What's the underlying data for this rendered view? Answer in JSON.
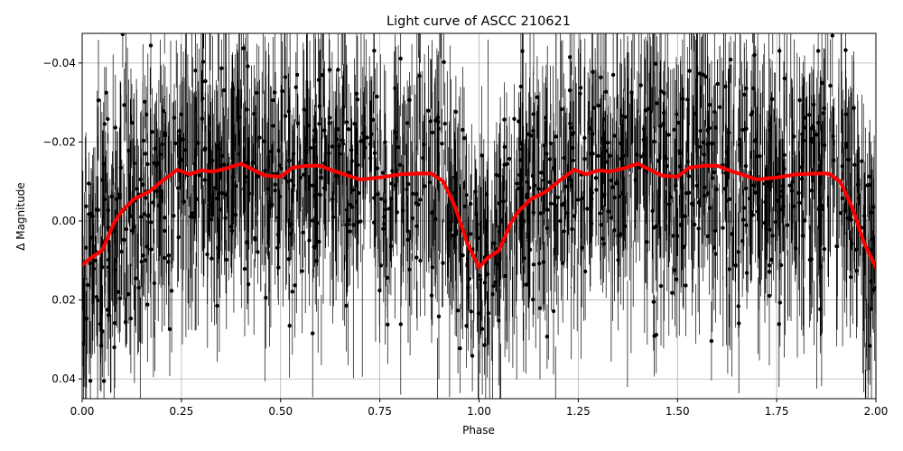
{
  "chart_data": {
    "type": "scatter",
    "title": "Light curve of ASCC 210621",
    "xlabel": "Phase",
    "ylabel": "Δ Magnitude",
    "xlim": [
      0.0,
      2.0
    ],
    "ylim": [
      0.045,
      -0.0475
    ],
    "y_inverted": true,
    "grid": true,
    "legend": "none",
    "xticks": [
      0.0,
      0.25,
      0.5,
      0.75,
      1.0,
      1.25,
      1.5,
      1.75,
      2.0
    ],
    "xtick_labels": [
      "0.00",
      "0.25",
      "0.50",
      "0.75",
      "1.00",
      "1.25",
      "1.50",
      "1.75",
      "2.00"
    ],
    "yticks": [
      -0.04,
      -0.02,
      0.0,
      0.02,
      0.04
    ],
    "ytick_labels": [
      "−0.04",
      "−0.02",
      "0.00",
      "0.02",
      "0.04"
    ],
    "series": [
      {
        "kind": "scatter_with_errorbars",
        "color": "#000000",
        "description_points": "individual photometric measurements with vertical error bars, heavily overlapping",
        "scatter_sigma_mag": 0.015
      },
      {
        "kind": "line",
        "color": "#ff0000",
        "x": [
          0.0,
          0.02,
          0.05,
          0.08,
          0.1,
          0.13,
          0.17,
          0.2,
          0.24,
          0.27,
          0.3,
          0.33,
          0.36,
          0.4,
          0.43,
          0.46,
          0.5,
          0.53,
          0.57,
          0.6,
          0.63,
          0.67,
          0.7,
          0.75,
          0.8,
          0.85,
          0.88,
          0.91,
          0.94,
          0.97,
          1.0,
          1.02,
          1.05,
          1.08,
          1.1,
          1.13,
          1.17,
          1.2,
          1.24,
          1.27,
          1.3,
          1.33,
          1.36,
          1.4,
          1.43,
          1.46,
          1.5,
          1.53,
          1.57,
          1.6,
          1.63,
          1.67,
          1.7,
          1.75,
          1.8,
          1.85,
          1.88,
          1.91,
          1.94,
          1.97,
          2.0
        ],
        "y": [
          0.0112,
          0.0095,
          0.0075,
          0.0005,
          -0.0025,
          -0.0055,
          -0.0075,
          -0.01,
          -0.013,
          -0.0118,
          -0.0128,
          -0.0125,
          -0.0132,
          -0.0145,
          -0.013,
          -0.0115,
          -0.0112,
          -0.0135,
          -0.014,
          -0.014,
          -0.0128,
          -0.0115,
          -0.0105,
          -0.011,
          -0.0118,
          -0.012,
          -0.012,
          -0.01,
          -0.0035,
          0.0055,
          0.0118,
          0.0095,
          0.0075,
          0.0005,
          -0.0025,
          -0.0055,
          -0.0075,
          -0.01,
          -0.013,
          -0.0118,
          -0.0128,
          -0.0125,
          -0.0132,
          -0.0145,
          -0.013,
          -0.0115,
          -0.0112,
          -0.0135,
          -0.014,
          -0.014,
          -0.0128,
          -0.0115,
          -0.0105,
          -0.011,
          -0.0118,
          -0.012,
          -0.012,
          -0.01,
          -0.0035,
          0.0055,
          0.0118
        ]
      }
    ]
  }
}
